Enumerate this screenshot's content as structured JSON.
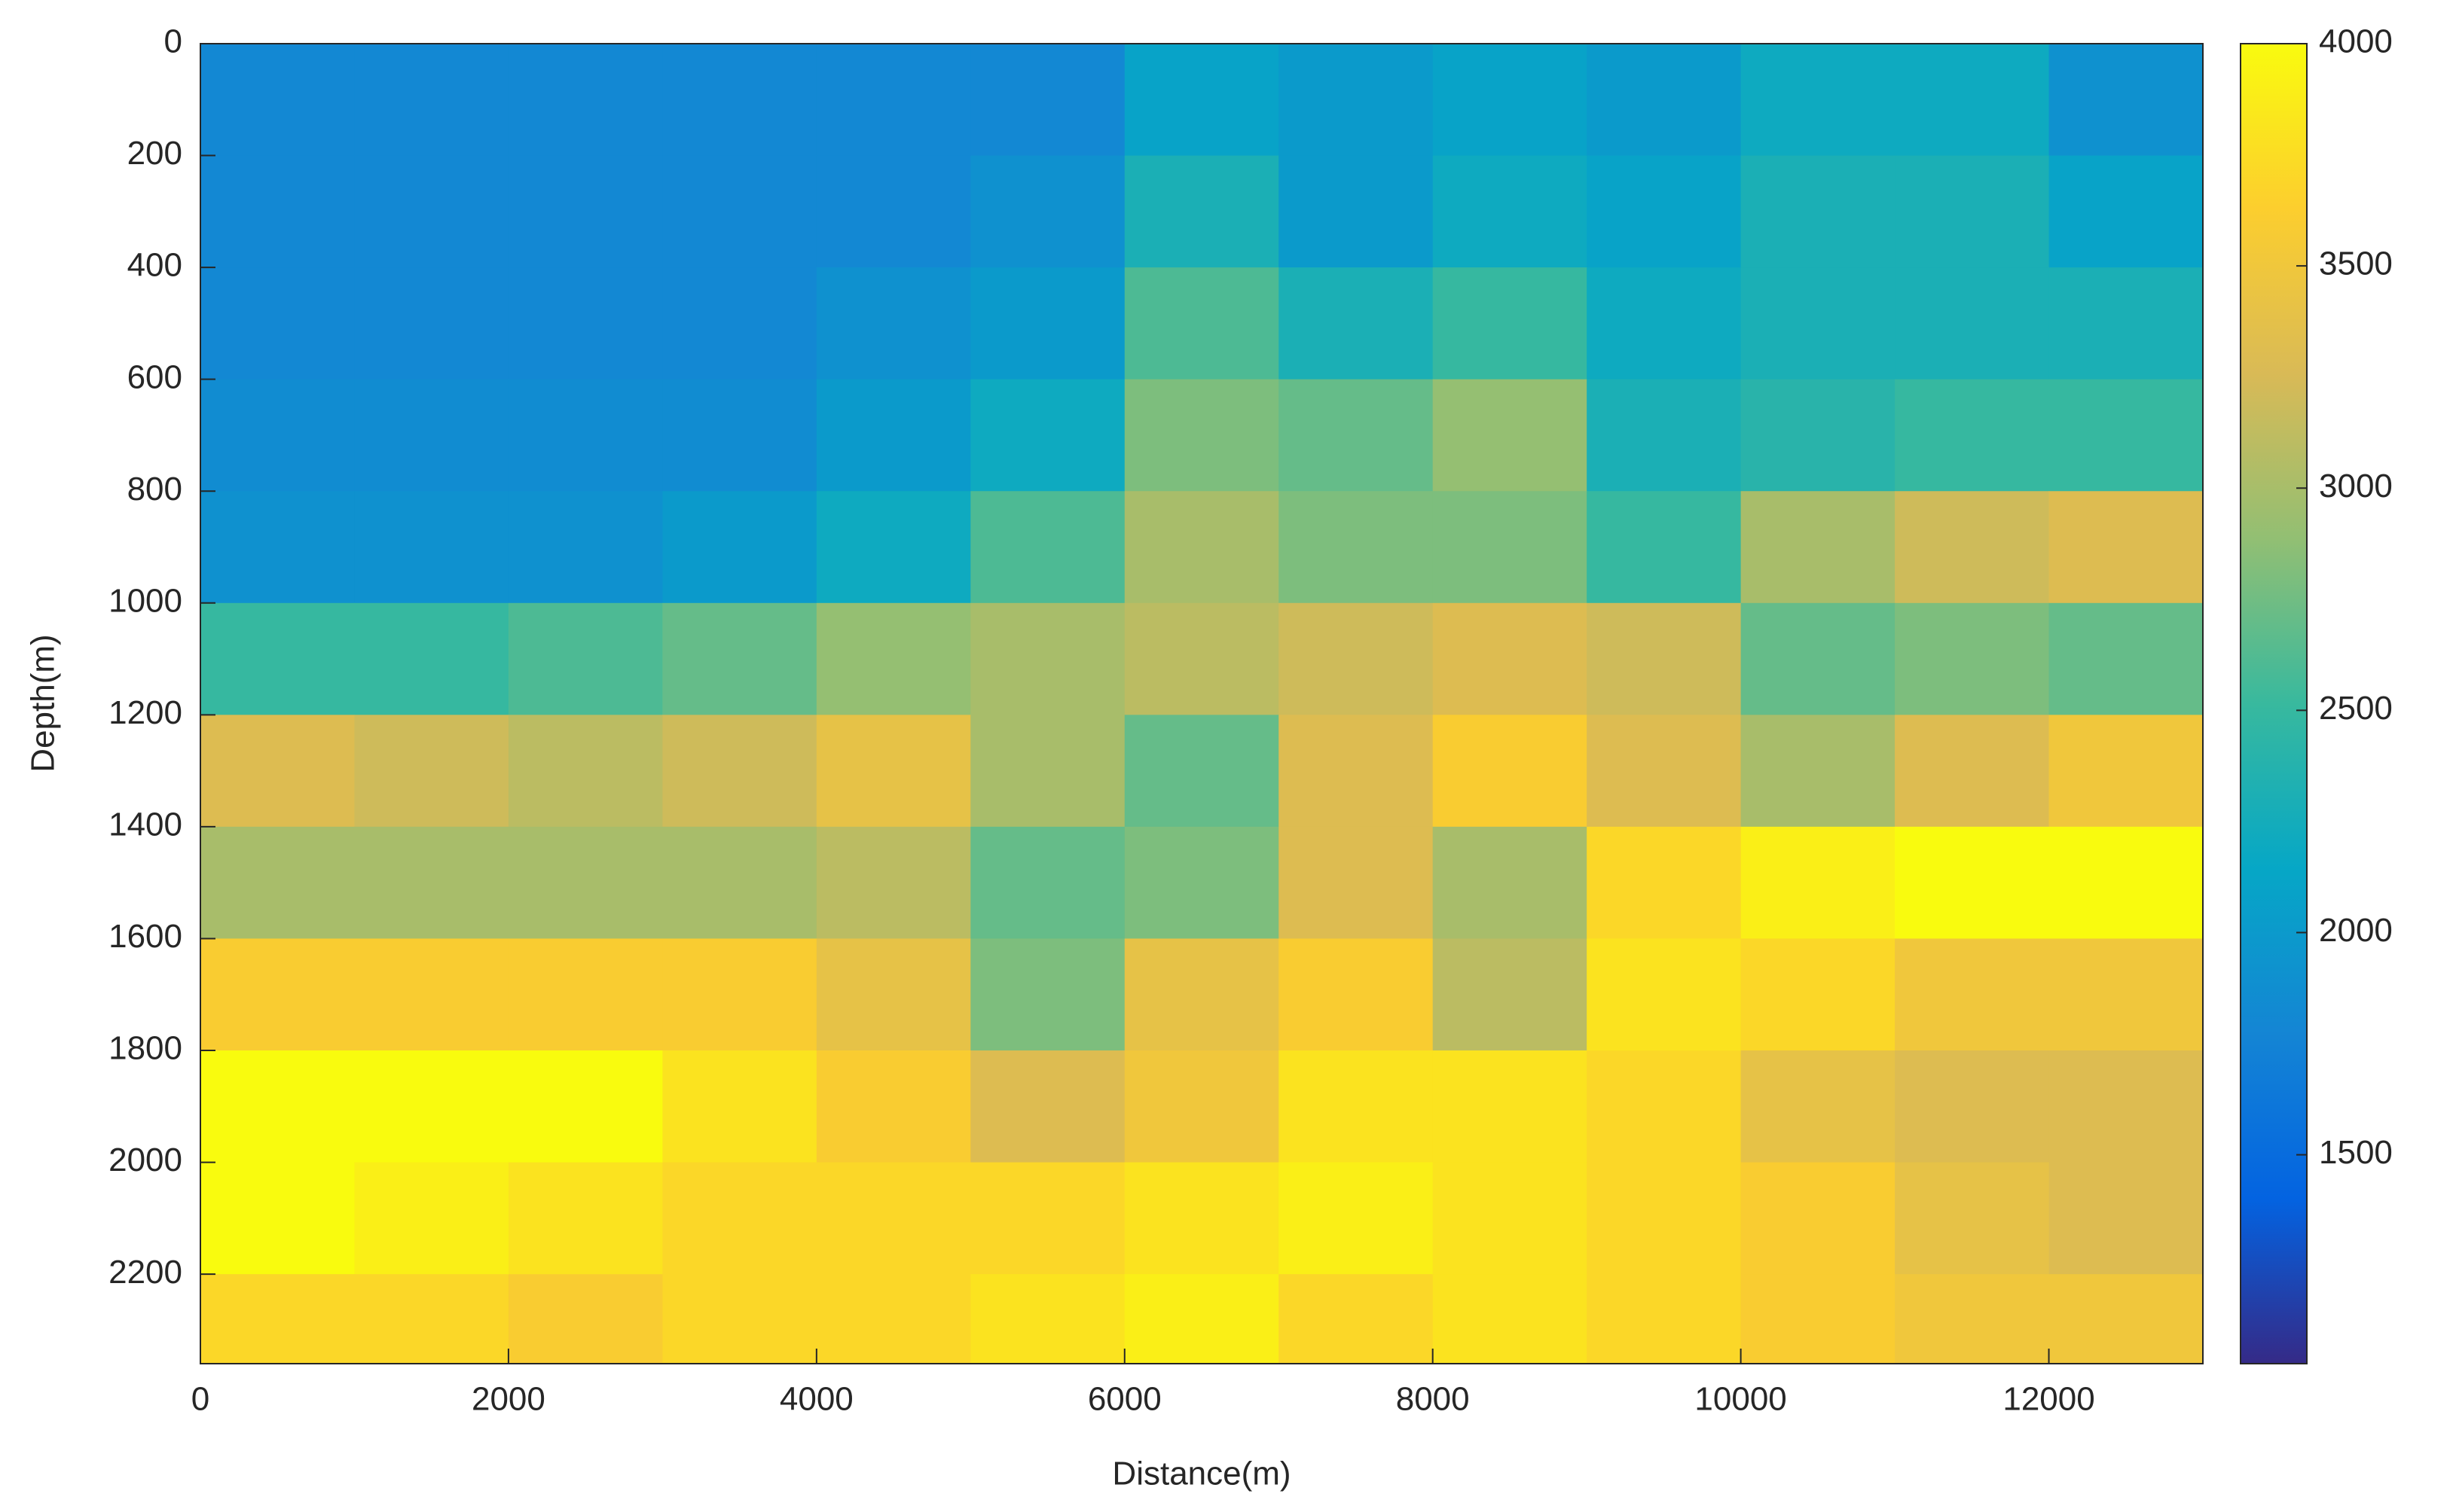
{
  "chart_data": {
    "type": "heatmap",
    "xlabel": "Distance(m)",
    "ylabel": "Depth(m)",
    "xbins": [
      0,
      1000,
      2000,
      3000,
      4000,
      5000,
      6000,
      7000,
      8000,
      9000,
      10000,
      11000,
      12000,
      13000
    ],
    "ybins": [
      0,
      200,
      400,
      600,
      800,
      1000,
      1200,
      1400,
      1600,
      1800,
      2000,
      2200,
      2360
    ],
    "z": [
      [
        1800,
        1800,
        1800,
        1800,
        1800,
        1800,
        2100,
        2000,
        2100,
        2000,
        2200,
        2200,
        1900
      ],
      [
        1800,
        1800,
        1800,
        1800,
        1800,
        1900,
        2300,
        2000,
        2200,
        2100,
        2300,
        2300,
        2100
      ],
      [
        1800,
        1800,
        1800,
        1800,
        1900,
        2000,
        2600,
        2300,
        2500,
        2200,
        2300,
        2300,
        2300
      ],
      [
        1850,
        1850,
        1850,
        1850,
        2000,
        2200,
        2800,
        2700,
        2900,
        2300,
        2400,
        2500,
        2500
      ],
      [
        1900,
        1900,
        1900,
        2000,
        2200,
        2600,
        3000,
        2800,
        2800,
        2500,
        3000,
        3200,
        3300
      ],
      [
        2500,
        2500,
        2600,
        2700,
        2900,
        3000,
        3100,
        3200,
        3300,
        3200,
        2700,
        2800,
        2700
      ],
      [
        3300,
        3200,
        3100,
        3200,
        3400,
        3000,
        2700,
        3300,
        3600,
        3300,
        3000,
        3300,
        3500
      ],
      [
        3000,
        3000,
        3000,
        3000,
        3100,
        2700,
        2800,
        3300,
        3000,
        3700,
        3900,
        4000,
        4000
      ],
      [
        3600,
        3600,
        3600,
        3600,
        3400,
        2800,
        3400,
        3600,
        3100,
        3800,
        3700,
        3500,
        3500
      ],
      [
        4000,
        4000,
        4000,
        3800,
        3600,
        3300,
        3500,
        3800,
        3800,
        3700,
        3400,
        3300,
        3300
      ],
      [
        4000,
        3900,
        3800,
        3700,
        3700,
        3700,
        3800,
        3900,
        3800,
        3700,
        3600,
        3400,
        3300
      ],
      [
        3700,
        3700,
        3600,
        3700,
        3700,
        3800,
        3900,
        3700,
        3800,
        3700,
        3600,
        3500,
        3500
      ]
    ],
    "xlim": [
      0,
      13000
    ],
    "xticks": [
      0,
      2000,
      4000,
      6000,
      8000,
      10000,
      12000
    ],
    "ylim": [
      0,
      2360
    ],
    "y_reversed": true,
    "yticks": [
      0,
      200,
      400,
      600,
      800,
      1000,
      1200,
      1400,
      1600,
      1800,
      2000,
      2200
    ],
    "clim": [
      1030,
      4000
    ],
    "cticks": [
      1500,
      2000,
      2500,
      3000,
      3500,
      4000
    ],
    "colormap": [
      "#352a87",
      "#0363e1",
      "#1485d4",
      "#06a7c6",
      "#38b99e",
      "#92bf73",
      "#d9ba56",
      "#fcce2e",
      "#f9fb0e"
    ]
  }
}
